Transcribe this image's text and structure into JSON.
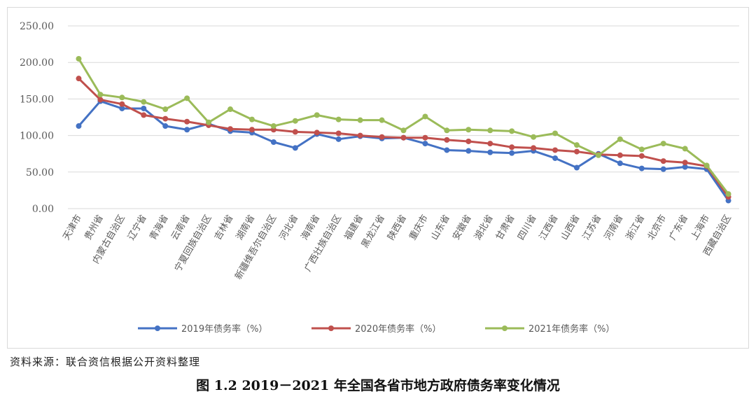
{
  "source_note": "资料来源：联合资信根据公开资料整理",
  "caption": "图 1.2    2019－2021 年全国各省市地方政府债务率变化情况",
  "chart_data": {
    "type": "line",
    "title": "",
    "xlabel": "",
    "ylabel": "",
    "ylim": [
      0,
      250
    ],
    "yticks": [
      "0.00",
      "50.00",
      "100.00",
      "150.00",
      "200.00",
      "250.00"
    ],
    "grid": true,
    "legend": "bottom",
    "categories": [
      "天津市",
      "贵州省",
      "内蒙古自治区",
      "辽宁省",
      "青海省",
      "云南省",
      "宁夏回族自治区",
      "吉林省",
      "湖南省",
      "新疆维吾尔自治区",
      "河北省",
      "海南省",
      "广西壮族自治区",
      "福建省",
      "黑龙江省",
      "陕西省",
      "重庆市",
      "山东省",
      "安徽省",
      "湖北省",
      "甘肃省",
      "四川省",
      "江西省",
      "山西省",
      "江苏省",
      "河南省",
      "浙江省",
      "北京市",
      "广东省",
      "上海市",
      "西藏自治区"
    ],
    "series": [
      {
        "name": "2019年债务率（%）",
        "color": "#4472c4",
        "values": [
          113,
          147,
          137,
          137,
          113,
          108,
          116,
          106,
          104,
          91,
          83,
          102,
          95,
          99,
          96,
          97,
          89,
          80,
          79,
          77,
          76,
          79,
          69,
          56,
          75,
          62,
          55,
          54,
          57,
          54,
          11
        ]
      },
      {
        "name": "2020年债务率（%）",
        "color": "#c0504d",
        "values": [
          178,
          149,
          143,
          128,
          123,
          119,
          114,
          109,
          108,
          108,
          105,
          104,
          103,
          100,
          98,
          97,
          97,
          94,
          92,
          89,
          84,
          83,
          80,
          78,
          74,
          73,
          72,
          65,
          63,
          58,
          16
        ]
      },
      {
        "name": "2021年债务率（%）",
        "color": "#9bbb59",
        "values": [
          205,
          156,
          152,
          146,
          136,
          151,
          118,
          136,
          122,
          113,
          120,
          128,
          122,
          121,
          121,
          107,
          126,
          107,
          108,
          107,
          106,
          98,
          103,
          87,
          73,
          95,
          81,
          89,
          82,
          59,
          20
        ]
      }
    ]
  }
}
